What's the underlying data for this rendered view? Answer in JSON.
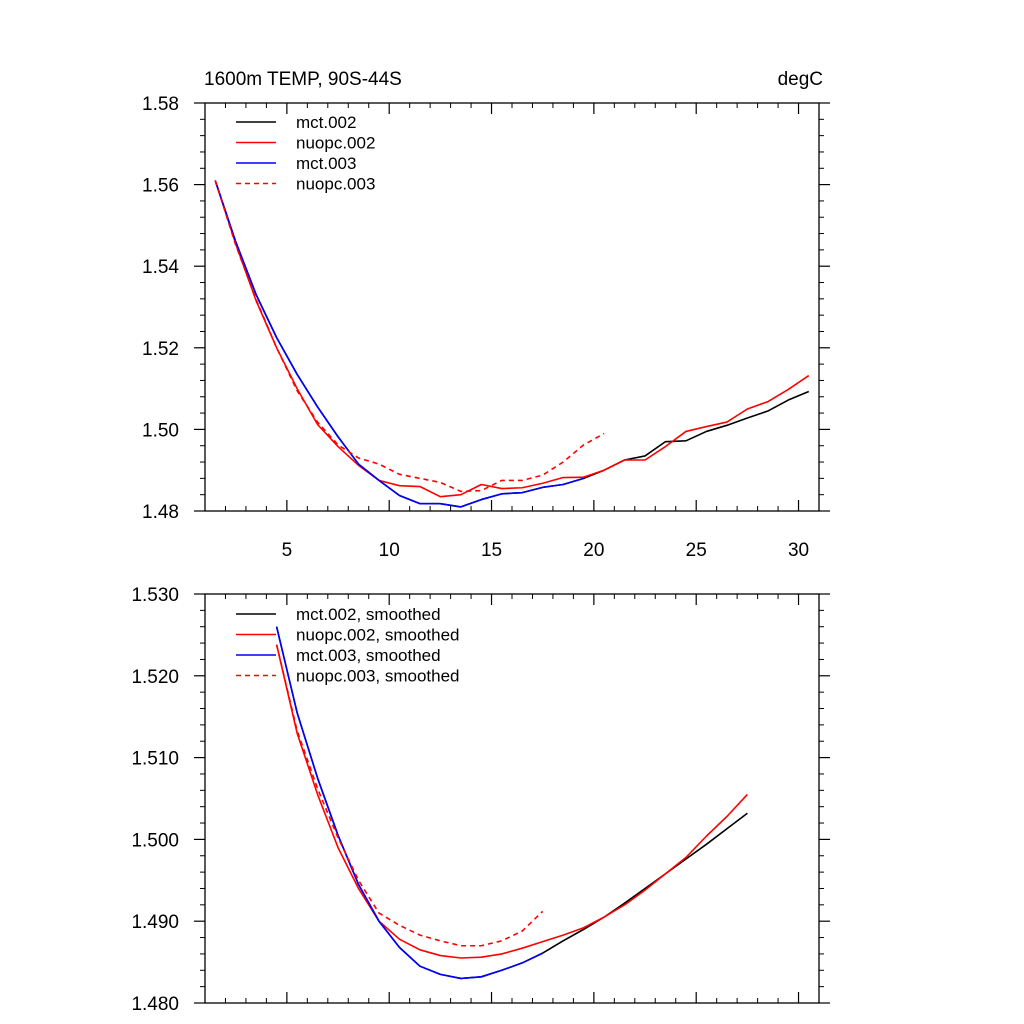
{
  "chart_data": [
    {
      "type": "line",
      "title": "1600m TEMP, 90S-44S",
      "units": "degC",
      "xlabel": "",
      "ylabel": "",
      "xlim": [
        1,
        31
      ],
      "ylim": [
        1.48,
        1.58
      ],
      "xticks": [
        5,
        10,
        15,
        20,
        25,
        30
      ],
      "xtick_labels": [
        "5",
        "10",
        "15",
        "20",
        "25",
        "30"
      ],
      "yticks": [
        1.48,
        1.5,
        1.52,
        1.54,
        1.56,
        1.58
      ],
      "ytick_labels": [
        "1.48",
        "1.50",
        "1.52",
        "1.54",
        "1.56",
        "1.58"
      ],
      "legend_position": "top-left",
      "series": [
        {
          "name": "mct.002",
          "color": "#000000",
          "dash": "solid",
          "x": [
            1.5,
            2.5,
            3.5,
            4.5,
            5.5,
            6.5,
            7.5,
            8.5,
            9.5,
            10.5,
            11.5,
            12.5,
            13.5,
            14.5,
            15.5,
            16.5,
            17.5,
            18.5,
            19.5,
            20.5,
            21.5,
            22.5,
            23.5,
            24.5,
            25.5,
            26.5,
            27.5,
            28.5,
            29.5,
            30.5
          ],
          "values": [
            1.561,
            1.546,
            1.533,
            1.5225,
            1.5135,
            1.5055,
            1.4982,
            1.4915,
            1.4875,
            1.4838,
            1.4818,
            1.4818,
            1.481,
            1.4828,
            1.4842,
            1.4845,
            1.4858,
            1.4865,
            1.488,
            1.49,
            1.4925,
            1.4935,
            1.497,
            1.4972,
            1.4995,
            1.501,
            1.5028,
            1.5045,
            1.5072,
            1.5093
          ]
        },
        {
          "name": "nuopc.002",
          "color": "#ff0000",
          "dash": "solid",
          "x": [
            1.5,
            2.5,
            3.5,
            4.5,
            5.5,
            6.5,
            7.5,
            8.5,
            9.5,
            10.5,
            11.5,
            12.5,
            13.5,
            14.5,
            15.5,
            16.5,
            17.5,
            18.5,
            19.5,
            20.5,
            21.5,
            22.5,
            23.5,
            24.5,
            25.5,
            26.5,
            27.5,
            28.5,
            29.5,
            30.5
          ],
          "values": [
            1.561,
            1.5455,
            1.5315,
            1.52,
            1.51,
            1.5012,
            1.4958,
            1.4912,
            1.4875,
            1.4862,
            1.486,
            1.4835,
            1.484,
            1.4865,
            1.4855,
            1.4857,
            1.4868,
            1.4882,
            1.4883,
            1.49,
            1.4925,
            1.4925,
            1.4958,
            1.4995,
            1.5007,
            1.5018,
            1.505,
            1.5068,
            1.5098,
            1.5132
          ]
        },
        {
          "name": "mct.003",
          "color": "#0000ff",
          "dash": "solid",
          "x": [
            1.5,
            2.5,
            3.5,
            4.5,
            5.5,
            6.5,
            7.5,
            8.5,
            9.5,
            10.5,
            11.5,
            12.5,
            13.5,
            14.5,
            15.5,
            16.5,
            17.5,
            18.5,
            19.5
          ],
          "values": [
            1.561,
            1.546,
            1.533,
            1.5225,
            1.5135,
            1.5055,
            1.4982,
            1.4915,
            1.4875,
            1.4838,
            1.4818,
            1.4818,
            1.481,
            1.4828,
            1.4842,
            1.4845,
            1.4858,
            1.4865,
            1.488
          ]
        },
        {
          "name": "nuopc.003",
          "color": "#ff0000",
          "dash": "dashed",
          "x": [
            1.5,
            2.5,
            3.5,
            4.5,
            5.5,
            6.5,
            7.5,
            8.5,
            9.5,
            10.5,
            11.5,
            12.5,
            13.5,
            14.5,
            15.5,
            16.5,
            17.5,
            18.5,
            19.5,
            20.5
          ],
          "values": [
            1.561,
            1.5452,
            1.5318,
            1.52,
            1.5095,
            1.5018,
            1.4962,
            1.493,
            1.4915,
            1.489,
            1.488,
            1.487,
            1.4848,
            1.485,
            1.4875,
            1.4875,
            1.4888,
            1.492,
            1.4962,
            1.499
          ]
        }
      ]
    },
    {
      "type": "line",
      "title": "",
      "xlabel": "",
      "ylabel": "",
      "xlim": [
        1,
        31
      ],
      "ylim": [
        1.48,
        1.53
      ],
      "xticks": [
        5,
        10,
        15,
        20,
        25,
        30
      ],
      "xtick_labels": [],
      "yticks": [
        1.48,
        1.49,
        1.5,
        1.51,
        1.52,
        1.53
      ],
      "ytick_labels": [
        "1.480",
        "1.490",
        "1.500",
        "1.510",
        "1.520",
        "1.530"
      ],
      "legend_position": "top-left",
      "series": [
        {
          "name": "mct.002, smoothed",
          "color": "#000000",
          "dash": "solid",
          "x": [
            4.5,
            5.5,
            6.5,
            7.5,
            8.5,
            9.5,
            10.5,
            11.5,
            12.5,
            13.5,
            14.5,
            15.5,
            16.5,
            17.5,
            18.5,
            19.5,
            20.5,
            21.5,
            22.5,
            23.5,
            24.5,
            25.5,
            26.5,
            27.5
          ],
          "values": [
            1.526,
            1.5155,
            1.5075,
            1.5005,
            1.4945,
            1.49,
            1.4868,
            1.4845,
            1.4835,
            1.483,
            1.4832,
            1.484,
            1.4849,
            1.4861,
            1.4876,
            1.489,
            1.4905,
            1.4922,
            1.494,
            1.4958,
            1.4976,
            1.4994,
            1.5013,
            1.5032
          ]
        },
        {
          "name": "nuopc.002, smoothed",
          "color": "#ff0000",
          "dash": "solid",
          "x": [
            4.5,
            5.5,
            6.5,
            7.5,
            8.5,
            9.5,
            10.5,
            11.5,
            12.5,
            13.5,
            14.5,
            15.5,
            16.5,
            17.5,
            18.5,
            19.5,
            20.5,
            21.5,
            22.5,
            23.5,
            24.5,
            25.5,
            26.5,
            27.5
          ],
          "values": [
            1.5238,
            1.513,
            1.5055,
            1.499,
            1.494,
            1.49,
            1.4878,
            1.4865,
            1.4858,
            1.4855,
            1.4856,
            1.486,
            1.4867,
            1.4875,
            1.4883,
            1.4892,
            1.4905,
            1.492,
            1.4938,
            1.4958,
            1.4978,
            1.5004,
            1.5028,
            1.5055
          ]
        },
        {
          "name": "mct.003, smoothed",
          "color": "#0000ff",
          "dash": "solid",
          "x": [
            4.5,
            5.5,
            6.5,
            7.5,
            8.5,
            9.5,
            10.5,
            11.5,
            12.5,
            13.5,
            14.5,
            15.5,
            16.5,
            17.5
          ],
          "values": [
            1.526,
            1.5155,
            1.5075,
            1.5005,
            1.4945,
            1.49,
            1.4868,
            1.4845,
            1.4835,
            1.483,
            1.4832,
            1.484,
            1.4849,
            1.4861
          ]
        },
        {
          "name": "nuopc.003, smoothed",
          "color": "#ff0000",
          "dash": "dashed",
          "x": [
            4.5,
            5.5,
            6.5,
            7.5,
            8.5,
            9.5,
            10.5,
            11.5,
            12.5,
            13.5,
            14.5,
            15.5,
            16.5,
            17.5
          ],
          "values": [
            1.5238,
            1.5133,
            1.5062,
            1.5002,
            1.495,
            1.491,
            1.4895,
            1.4883,
            1.4876,
            1.487,
            1.487,
            1.4876,
            1.4888,
            1.4912
          ]
        }
      ]
    }
  ]
}
